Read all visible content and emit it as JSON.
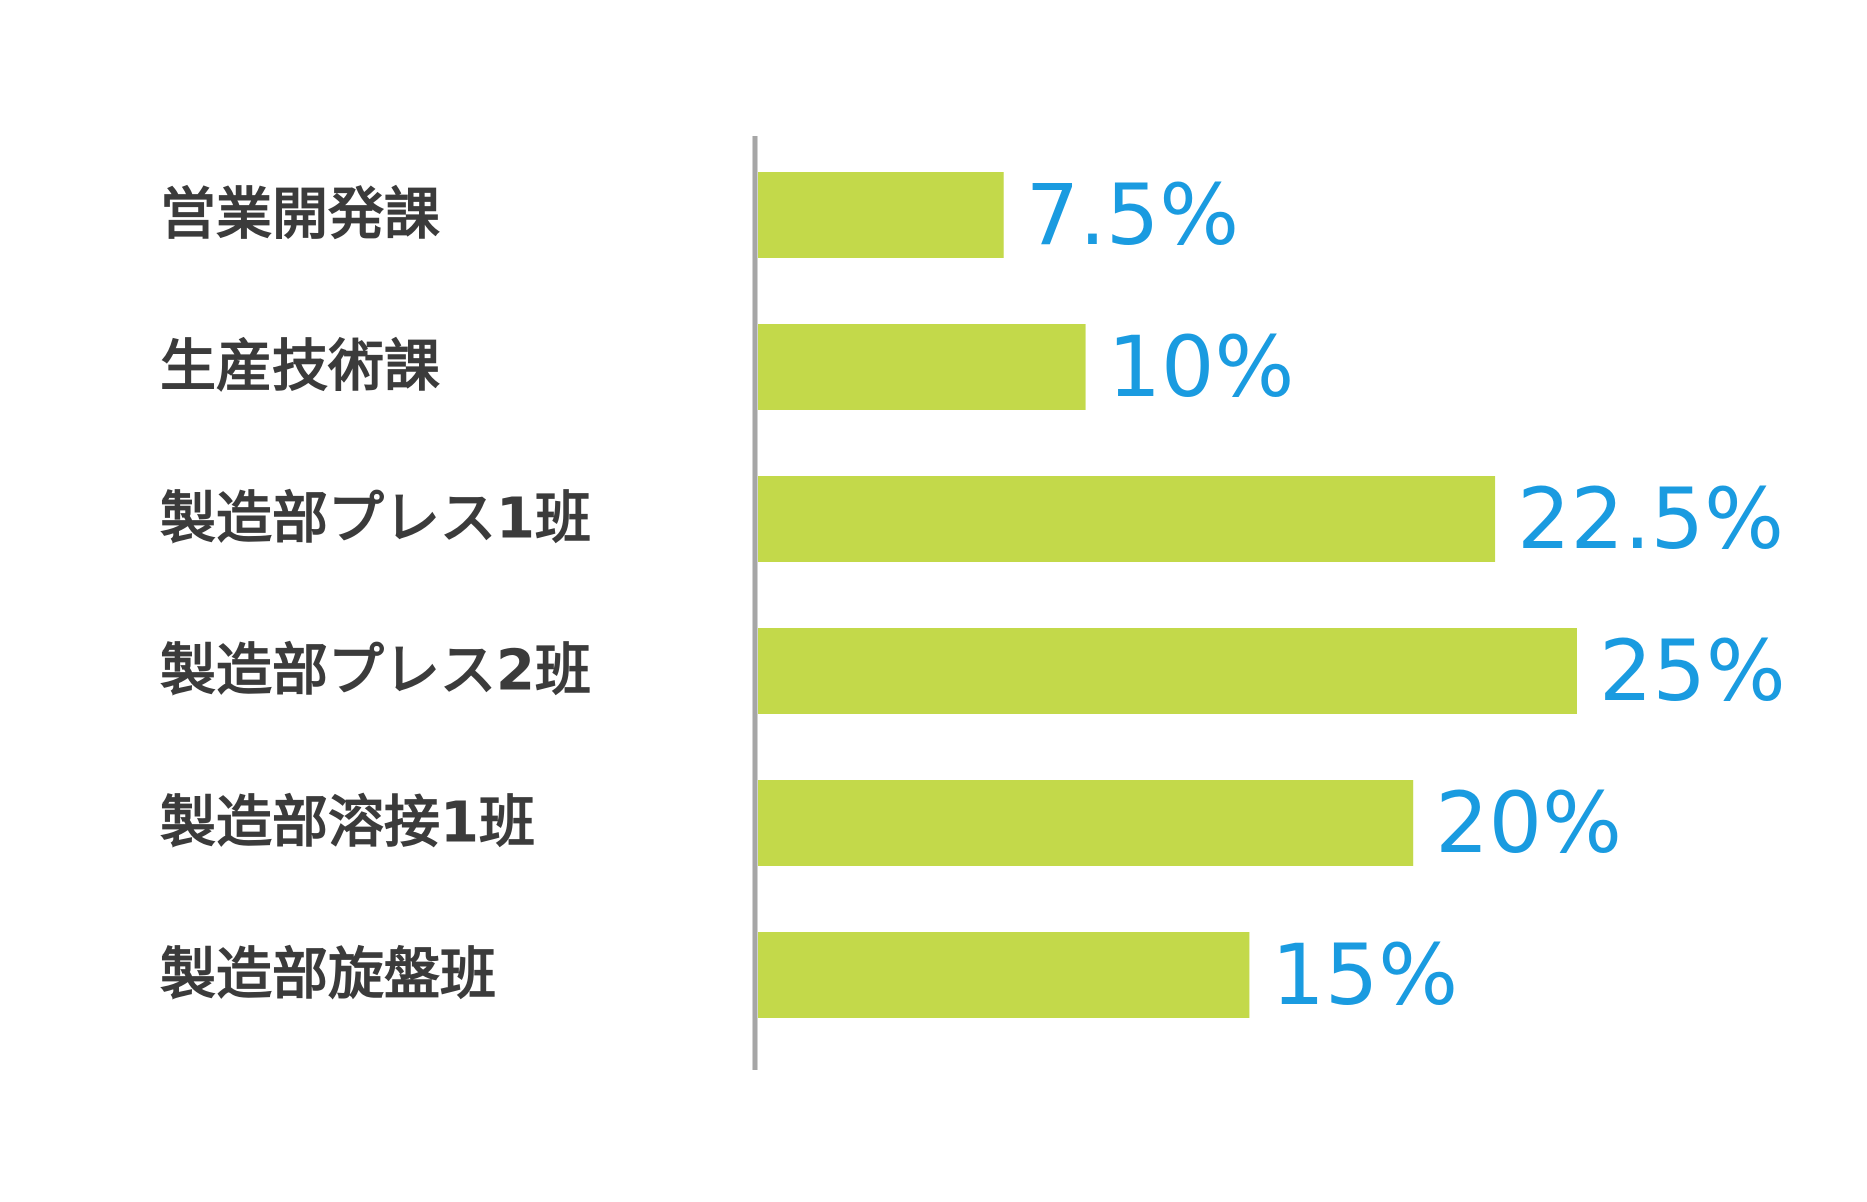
{
  "chart_data": {
    "type": "bar",
    "orientation": "horizontal",
    "categories": [
      "営業開発課",
      "生産技術課",
      "製造部プレス1班",
      "製造部プレス2班",
      "製造部溶接1班",
      "製造部旋盤班"
    ],
    "values": [
      7.5,
      10,
      22.5,
      25,
      20,
      15
    ],
    "value_labels": [
      "7.5%",
      "10%",
      "22.5%",
      "25%",
      "20%",
      "15%"
    ],
    "unit": "%",
    "xlim": [
      0,
      25
    ],
    "grid": false,
    "legend": "none",
    "colors": {
      "bar": "#c3d94a",
      "value_text": "#1a9be0",
      "category_text": "#3b3b3b",
      "axis": "#a6a6a6"
    }
  }
}
